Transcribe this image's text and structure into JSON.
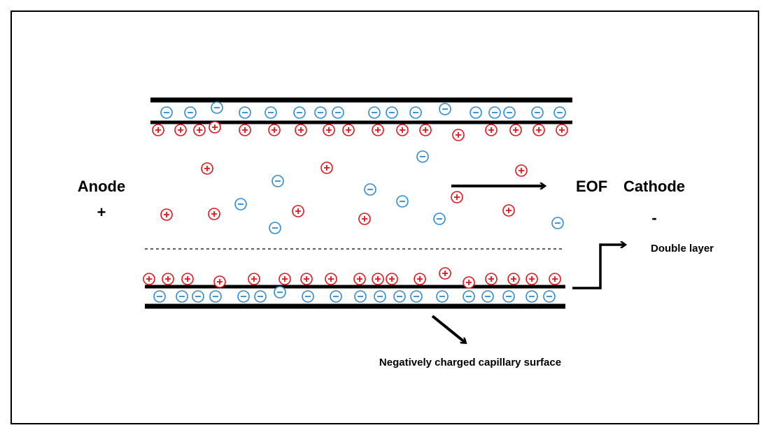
{
  "labels": {
    "anode": "Anode",
    "anode_sign": "+",
    "cathode": "Cathode",
    "cathode_sign": "-",
    "eof": "EOF",
    "double_layer": "Double layer",
    "surface": "Negatively charged capillary surface"
  }
}
